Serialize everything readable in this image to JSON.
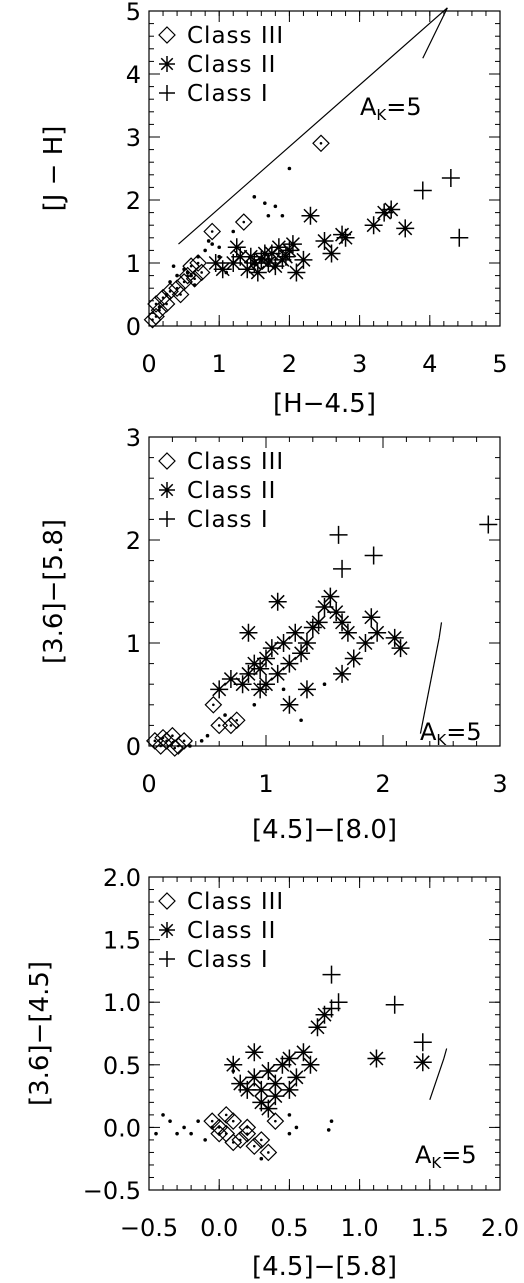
{
  "chart_data": [
    {
      "type": "scatter",
      "xlabel": "[H−4.5]",
      "ylabel": "[J − H]",
      "xlim": [
        0,
        5
      ],
      "ylim": [
        0,
        5
      ],
      "xticks": [
        "0",
        "1",
        "2",
        "3",
        "4",
        "5"
      ],
      "yticks": [
        "0",
        "1",
        "2",
        "3",
        "4",
        "5"
      ],
      "legend": {
        "position": "top-left",
        "entries": [
          {
            "marker": "diamond",
            "label": "Class III"
          },
          {
            "marker": "asterisk",
            "label": "Class II"
          },
          {
            "marker": "plus",
            "label": "Class I"
          }
        ]
      },
      "reddening_vector": {
        "label": "A",
        "sub": "K",
        "suffix": "=5",
        "from": [
          0.42,
          1.3
        ],
        "to": [
          4.25,
          5.05
        ],
        "tip_to": [
          3.9,
          4.25
        ]
      },
      "series": [
        {
          "name": "Class III",
          "marker": "diamond",
          "points": [
            [
              0.05,
              0.1
            ],
            [
              0.1,
              0.15
            ],
            [
              0.15,
              0.25
            ],
            [
              0.1,
              0.35
            ],
            [
              0.2,
              0.45
            ],
            [
              0.3,
              0.55
            ],
            [
              0.4,
              0.6
            ],
            [
              0.5,
              0.7
            ],
            [
              0.55,
              0.8
            ],
            [
              0.6,
              0.95
            ],
            [
              0.7,
              1.0
            ],
            [
              0.75,
              0.85
            ],
            [
              0.65,
              0.75
            ],
            [
              0.9,
              1.5
            ],
            [
              1.35,
              1.65
            ],
            [
              2.45,
              2.9
            ],
            [
              0.25,
              0.35
            ],
            [
              0.45,
              0.5
            ]
          ]
        },
        {
          "name": "Class II",
          "marker": "asterisk",
          "points": [
            [
              0.95,
              1.0
            ],
            [
              1.05,
              0.9
            ],
            [
              1.2,
              1.0
            ],
            [
              1.3,
              1.1
            ],
            [
              1.4,
              0.9
            ],
            [
              1.5,
              1.0
            ],
            [
              1.55,
              0.85
            ],
            [
              1.6,
              1.05
            ],
            [
              1.7,
              1.0
            ],
            [
              1.75,
              1.15
            ],
            [
              1.8,
              0.95
            ],
            [
              1.85,
              1.25
            ],
            [
              1.9,
              1.05
            ],
            [
              1.95,
              1.1
            ],
            [
              2.0,
              1.2
            ],
            [
              2.05,
              1.3
            ],
            [
              2.1,
              0.85
            ],
            [
              2.3,
              1.75
            ],
            [
              2.5,
              1.35
            ],
            [
              2.6,
              1.15
            ],
            [
              2.75,
              1.45
            ],
            [
              2.8,
              1.4
            ],
            [
              3.2,
              1.6
            ],
            [
              3.35,
              1.8
            ],
            [
              3.45,
              1.85
            ],
            [
              3.65,
              1.55
            ],
            [
              1.25,
              1.25
            ],
            [
              1.65,
              1.15
            ],
            [
              2.2,
              1.05
            ],
            [
              1.45,
              1.1
            ]
          ]
        },
        {
          "name": "Class I",
          "marker": "plus",
          "points": [
            [
              3.9,
              2.15
            ],
            [
              4.3,
              2.35
            ],
            [
              4.42,
              1.4
            ]
          ]
        },
        {
          "name": "",
          "marker": "dot",
          "points": [
            [
              0.3,
              0.7
            ],
            [
              0.4,
              0.8
            ],
            [
              0.5,
              0.9
            ],
            [
              0.6,
              0.8
            ],
            [
              0.7,
              1.1
            ],
            [
              0.8,
              1.2
            ],
            [
              0.9,
              1.3
            ],
            [
              1.0,
              1.1
            ],
            [
              1.1,
              0.85
            ],
            [
              0.35,
              0.95
            ],
            [
              0.55,
              0.85
            ],
            [
              0.25,
              0.5
            ],
            [
              1.5,
              2.05
            ],
            [
              1.65,
              1.95
            ],
            [
              1.7,
              1.75
            ],
            [
              1.8,
              1.9
            ],
            [
              1.9,
              1.75
            ],
            [
              2.0,
              2.5
            ],
            [
              1.2,
              1.5
            ],
            [
              1.0,
              1.25
            ],
            [
              0.85,
              1.35
            ],
            [
              0.65,
              0.65
            ],
            [
              0.15,
              0.3
            ]
          ]
        }
      ]
    },
    {
      "type": "scatter",
      "xlabel": "[4.5]−[8.0]",
      "ylabel": "[3.6]−[5.8]",
      "xlim": [
        0,
        3
      ],
      "ylim": [
        0,
        3
      ],
      "xticks": [
        "0",
        "1",
        "2",
        "3"
      ],
      "yticks": [
        "0",
        "1",
        "2",
        "3"
      ],
      "legend": {
        "position": "top-left",
        "entries": [
          {
            "marker": "diamond",
            "label": "Class III"
          },
          {
            "marker": "asterisk",
            "label": "Class II"
          },
          {
            "marker": "plus",
            "label": "Class I"
          }
        ]
      },
      "reddening_vector": {
        "label": "A",
        "sub": "K",
        "suffix": "=5",
        "from": [
          2.32,
          0.12
        ],
        "to": [
          2.48,
          1.05
        ],
        "tip_to": [
          2.5,
          1.2
        ]
      },
      "series": [
        {
          "name": "Class III",
          "marker": "diamond",
          "points": [
            [
              0.05,
              0.05
            ],
            [
              0.1,
              0.0
            ],
            [
              0.15,
              0.05
            ],
            [
              0.2,
              0.1
            ],
            [
              0.25,
              0.0
            ],
            [
              0.3,
              0.05
            ],
            [
              0.55,
              0.4
            ],
            [
              0.6,
              0.2
            ],
            [
              0.7,
              0.2
            ],
            [
              0.75,
              0.25
            ],
            [
              0.12,
              0.08
            ],
            [
              0.22,
              -0.02
            ]
          ]
        },
        {
          "name": "Class II",
          "marker": "asterisk",
          "points": [
            [
              0.6,
              0.55
            ],
            [
              0.7,
              0.65
            ],
            [
              0.8,
              0.6
            ],
            [
              0.85,
              0.7
            ],
            [
              0.9,
              0.8
            ],
            [
              0.95,
              0.75
            ],
            [
              1.0,
              0.85
            ],
            [
              1.05,
              0.95
            ],
            [
              1.1,
              0.7
            ],
            [
              1.15,
              1.0
            ],
            [
              1.2,
              0.8
            ],
            [
              1.25,
              1.1
            ],
            [
              1.3,
              0.9
            ],
            [
              1.35,
              1.0
            ],
            [
              1.4,
              1.15
            ],
            [
              1.45,
              1.2
            ],
            [
              1.5,
              1.35
            ],
            [
              1.55,
              1.45
            ],
            [
              1.6,
              1.3
            ],
            [
              1.65,
              1.2
            ],
            [
              1.7,
              1.1
            ],
            [
              1.75,
              0.85
            ],
            [
              1.85,
              1.0
            ],
            [
              1.9,
              1.25
            ],
            [
              1.95,
              1.1
            ],
            [
              2.1,
              1.05
            ],
            [
              2.15,
              0.95
            ],
            [
              1.2,
              0.4
            ],
            [
              1.1,
              1.4
            ],
            [
              1.65,
              0.7
            ],
            [
              1.35,
              0.55
            ],
            [
              0.95,
              0.55
            ],
            [
              0.85,
              1.1
            ],
            [
              1.0,
              0.6
            ]
          ]
        },
        {
          "name": "Class I",
          "marker": "plus",
          "points": [
            [
              1.62,
              2.05
            ],
            [
              1.65,
              1.72
            ],
            [
              1.92,
              1.85
            ],
            [
              2.9,
              2.15
            ]
          ]
        },
        {
          "name": "",
          "marker": "dot",
          "points": [
            [
              0.35,
              0.0
            ],
            [
              0.45,
              0.05
            ],
            [
              0.5,
              0.1
            ],
            [
              0.65,
              0.3
            ],
            [
              0.9,
              0.4
            ],
            [
              1.3,
              0.25
            ],
            [
              1.15,
              0.55
            ],
            [
              1.5,
              0.6
            ]
          ]
        }
      ]
    },
    {
      "type": "scatter",
      "xlabel": "[4.5]−[5.8]",
      "ylabel": "[3.6]−[4.5]",
      "xlim": [
        -0.5,
        2.0
      ],
      "ylim": [
        -0.5,
        2.0
      ],
      "xticks": [
        "−0.5",
        "0.0",
        "0.5",
        "1.0",
        "1.5",
        "2.0"
      ],
      "yticks": [
        "−0.5",
        "0.0",
        "0.5",
        "1.0",
        "1.5",
        "2.0"
      ],
      "legend": {
        "position": "top-left",
        "entries": [
          {
            "marker": "diamond",
            "label": "Class III"
          },
          {
            "marker": "asterisk",
            "label": "Class II"
          },
          {
            "marker": "plus",
            "label": "Class I"
          }
        ]
      },
      "reddening_vector": {
        "label": "A",
        "sub": "K",
        "suffix": "=5",
        "from": [
          1.5,
          0.22
        ],
        "to": [
          1.6,
          0.55
        ],
        "tip_to": [
          1.62,
          0.63
        ]
      },
      "series": [
        {
          "name": "Class III",
          "marker": "diamond",
          "points": [
            [
              -0.05,
              0.05
            ],
            [
              0.0,
              0.0
            ],
            [
              0.05,
              -0.05
            ],
            [
              0.1,
              0.05
            ],
            [
              0.15,
              -0.1
            ],
            [
              0.2,
              0.0
            ],
            [
              0.25,
              -0.15
            ],
            [
              0.3,
              -0.1
            ],
            [
              0.35,
              -0.2
            ],
            [
              0.0,
              -0.05
            ],
            [
              0.05,
              0.1
            ],
            [
              0.2,
              -0.05
            ],
            [
              0.4,
              0.05
            ],
            [
              0.1,
              -0.12
            ]
          ]
        },
        {
          "name": "Class II",
          "marker": "asterisk",
          "points": [
            [
              0.1,
              0.5
            ],
            [
              0.15,
              0.35
            ],
            [
              0.2,
              0.3
            ],
            [
              0.25,
              0.4
            ],
            [
              0.3,
              0.3
            ],
            [
              0.35,
              0.45
            ],
            [
              0.4,
              0.35
            ],
            [
              0.45,
              0.5
            ],
            [
              0.5,
              0.55
            ],
            [
              0.55,
              0.4
            ],
            [
              0.6,
              0.6
            ],
            [
              0.65,
              0.5
            ],
            [
              0.7,
              0.8
            ],
            [
              0.75,
              0.9
            ],
            [
              0.3,
              0.2
            ],
            [
              0.4,
              0.25
            ],
            [
              0.25,
              0.6
            ],
            [
              0.5,
              0.3
            ],
            [
              0.35,
              0.15
            ],
            [
              1.12,
              0.55
            ],
            [
              1.45,
              0.52
            ]
          ]
        },
        {
          "name": "Class I",
          "marker": "plus",
          "points": [
            [
              0.8,
              1.22
            ],
            [
              0.8,
              0.95
            ],
            [
              0.85,
              1.0
            ],
            [
              1.25,
              0.98
            ],
            [
              1.45,
              0.68
            ]
          ]
        },
        {
          "name": "",
          "marker": "dot",
          "points": [
            [
              -0.4,
              0.1
            ],
            [
              -0.35,
              0.05
            ],
            [
              -0.3,
              -0.05
            ],
            [
              -0.25,
              0.0
            ],
            [
              -0.2,
              -0.05
            ],
            [
              -0.15,
              0.05
            ],
            [
              -0.1,
              -0.1
            ],
            [
              -0.05,
              0.0
            ],
            [
              0.1,
              0.45
            ],
            [
              -0.45,
              -0.05
            ],
            [
              0.5,
              0.1
            ],
            [
              0.5,
              -0.05
            ],
            [
              0.55,
              0.0
            ],
            [
              0.3,
              -0.25
            ],
            [
              0.8,
              0.05
            ],
            [
              0.78,
              -0.02
            ]
          ]
        }
      ]
    }
  ]
}
